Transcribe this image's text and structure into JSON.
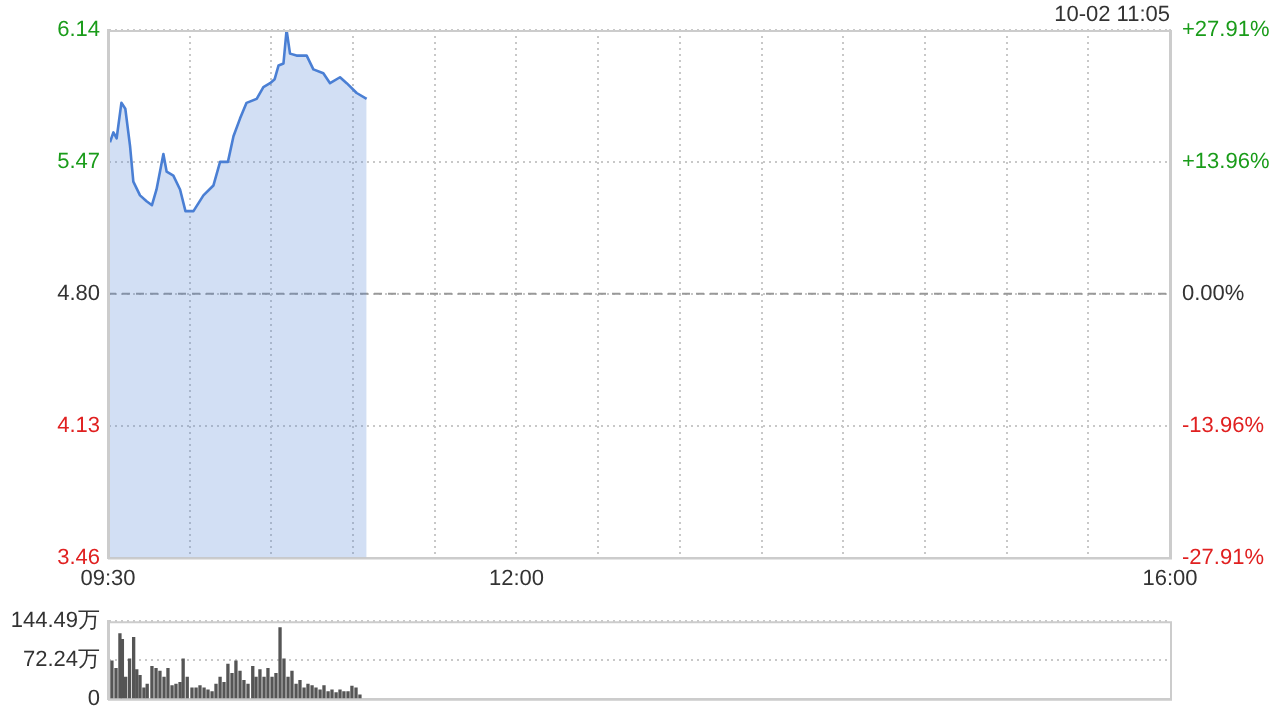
{
  "chart_data": [
    {
      "type": "area",
      "annotations": [
        "10-02 11:05"
      ],
      "x": [
        9.512,
        9.533,
        9.553,
        9.582,
        9.606,
        9.635,
        9.655,
        9.696,
        9.736,
        9.769,
        9.797,
        9.839,
        9.859,
        9.9,
        9.941,
        9.974,
        10.023,
        10.084,
        10.145,
        10.186,
        10.234,
        10.268,
        10.308,
        10.348,
        10.41,
        10.451,
        10.492,
        10.52,
        10.544,
        10.574,
        10.593,
        10.614,
        10.654,
        10.716,
        10.757,
        10.818,
        10.859,
        10.92,
        10.961,
        11.022,
        11.083
      ],
      "series": [
        {
          "color": "#4a7fd4",
          "values": [
            5.57,
            5.62,
            5.59,
            5.77,
            5.74,
            5.55,
            5.37,
            5.3,
            5.27,
            5.25,
            5.33,
            5.51,
            5.42,
            5.4,
            5.33,
            5.22,
            5.22,
            5.3,
            5.35,
            5.47,
            5.47,
            5.6,
            5.69,
            5.77,
            5.79,
            5.85,
            5.87,
            5.89,
            5.96,
            5.97,
            6.14,
            6.02,
            6.01,
            6.01,
            5.94,
            5.92,
            5.87,
            5.9,
            5.87,
            5.82,
            5.79
          ]
        }
      ],
      "xlim": [
        9.5,
        16
      ],
      "xticks": [
        {
          "value": 9.5,
          "label": "09:30"
        },
        {
          "value": 10,
          "label": null
        },
        {
          "value": 10.5,
          "label": null
        },
        {
          "value": 11,
          "label": null
        },
        {
          "value": 11.5,
          "label": null
        },
        {
          "value": 12,
          "label": "12:00"
        },
        {
          "value": 12.5,
          "label": null
        },
        {
          "value": 13,
          "label": null
        },
        {
          "value": 13.5,
          "label": null
        },
        {
          "value": 14,
          "label": null
        },
        {
          "value": 14.5,
          "label": null
        },
        {
          "value": 15,
          "label": null
        },
        {
          "value": 15.5,
          "label": null
        },
        {
          "value": 16,
          "label": "16:00"
        }
      ],
      "ylim": [
        3.46,
        6.14
      ],
      "yticks": [
        3.46,
        4.13,
        {
          "value": 4.8,
          "label": "4.80"
        },
        5.47,
        6.14
      ],
      "y2lim": [
        -27.91,
        27.91
      ],
      "y2ticks": [
        {
          "value": -27.91,
          "label": "-27.91%"
        },
        {
          "value": -13.96,
          "label": "-13.96%"
        },
        {
          "value": 0,
          "label": "0.00%"
        },
        {
          "value": 13.96,
          "label": "+13.96%"
        },
        {
          "value": 27.91,
          "label": "+27.91%"
        }
      ],
      "ref_lines": [
        {
          "axis": "y",
          "value": 4.8,
          "color": "#999999",
          "line_style": "dashed"
        }
      ],
      "grid": true,
      "legend": false
    },
    {
      "type": "bar",
      "tick_labels": "y",
      "xlim": [
        9.5,
        16
      ],
      "x": [
        9.524,
        9.549,
        9.573,
        9.588,
        9.608,
        9.632,
        9.657,
        9.676,
        9.696,
        9.72,
        9.74,
        9.769,
        9.794,
        9.818,
        9.843,
        9.867,
        9.892,
        9.916,
        9.941,
        9.96,
        9.985,
        10.014,
        10.039,
        10.063,
        10.088,
        10.112,
        10.137,
        10.161,
        10.186,
        10.21,
        10.234,
        10.259,
        10.283,
        10.308,
        10.332,
        10.357,
        10.386,
        10.406,
        10.43,
        10.455,
        10.479,
        10.504,
        10.528,
        10.553,
        10.577,
        10.602,
        10.626,
        10.651,
        10.675,
        10.7,
        10.724,
        10.749,
        10.773,
        10.798,
        10.822,
        10.847,
        10.871,
        10.896,
        10.92,
        10.944,
        10.969,
        10.993,
        11.018,
        11.042
      ],
      "series": [
        {
          "color": "#555555",
          "values": [
            70,
            56,
            121,
            110,
            40,
            74,
            114,
            54,
            43,
            20,
            27,
            60,
            56,
            51,
            40,
            56,
            24,
            27,
            30,
            74,
            40,
            20,
            20,
            24,
            20,
            16,
            13,
            27,
            40,
            30,
            64,
            47,
            70,
            51,
            34,
            27,
            60,
            40,
            54,
            40,
            56,
            40,
            47,
            132,
            74,
            40,
            51,
            27,
            34,
            20,
            27,
            24,
            20,
            16,
            24,
            13,
            16,
            11,
            16,
            13,
            13,
            23,
            20,
            7
          ]
        }
      ],
      "ylim": [
        0,
        144.49
      ],
      "yticks": [
        0,
        {
          "value": 72.24,
          "label": "72.24万"
        },
        {
          "value": 144.49,
          "label": "144.49万"
        }
      ],
      "grid": "y",
      "legend": false
    }
  ]
}
